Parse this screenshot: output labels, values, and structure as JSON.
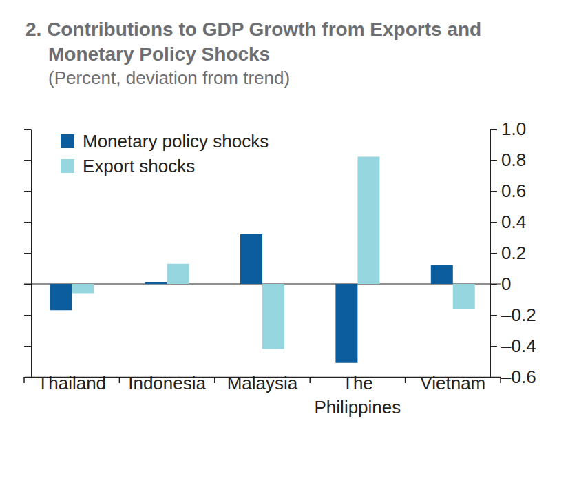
{
  "chart_data": {
    "type": "bar",
    "title": "2. Contributions to GDP Growth from Exports and Monetary Policy Shocks",
    "subtitle": "(Percent, deviation from trend)",
    "categories": [
      "Thailand",
      "Indonesia",
      "Malaysia",
      "The Philippines",
      "Vietnam"
    ],
    "series": [
      {
        "name": "Monetary policy shocks",
        "color": "#0b5d9e",
        "values": [
          -0.17,
          0.01,
          0.32,
          -0.51,
          0.12
        ]
      },
      {
        "name": "Export shocks",
        "color": "#96d7df",
        "values": [
          -0.06,
          0.13,
          -0.42,
          0.82,
          -0.16
        ]
      }
    ],
    "ylim": [
      -0.6,
      1
    ],
    "yticks": [
      {
        "value": -0.6,
        "label": "–0.6"
      },
      {
        "value": -0.4,
        "label": "–0.4"
      },
      {
        "value": -0.2,
        "label": "–0.2"
      },
      0,
      0.2,
      0.4,
      0.6,
      0.8,
      {
        "value": 1,
        "label": "1.0"
      }
    ],
    "legend": "upper left"
  }
}
